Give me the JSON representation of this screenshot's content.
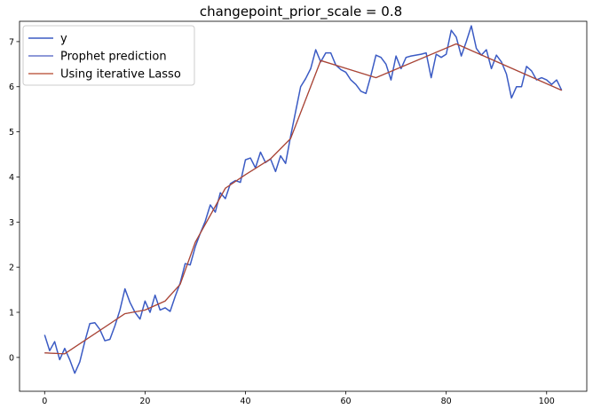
{
  "chart_data": {
    "type": "line",
    "title": "changepoint_prior_scale = 0.8",
    "xlabel": "",
    "ylabel": "",
    "xlim": [
      -5,
      108
    ],
    "ylim": [
      -0.75,
      7.45
    ],
    "xticks": [
      0,
      20,
      40,
      60,
      80,
      100
    ],
    "yticks": [
      0,
      1,
      2,
      3,
      4,
      5,
      6,
      7
    ],
    "grid": false,
    "legend_position": "top-left",
    "series": [
      {
        "name": "y",
        "color": "#3b5bc4",
        "x": [
          0,
          1,
          2,
          3,
          4,
          5,
          6,
          7,
          8,
          9,
          10,
          11,
          12,
          13,
          14,
          15,
          16,
          17,
          18,
          19,
          20,
          21,
          22,
          23,
          24,
          25,
          26,
          27,
          28,
          29,
          30,
          31,
          32,
          33,
          34,
          35,
          36,
          37,
          38,
          39,
          40,
          41,
          42,
          43,
          44,
          45,
          46,
          47,
          48,
          49,
          50,
          51,
          52,
          53,
          54,
          55,
          56,
          57,
          58,
          59,
          60,
          61,
          62,
          63,
          64,
          65,
          66,
          67,
          68,
          69,
          70,
          71,
          72,
          73,
          74,
          75,
          76,
          77,
          78,
          79,
          80,
          81,
          82,
          83,
          84,
          85,
          86,
          87,
          88,
          89,
          90,
          91,
          92,
          93,
          94,
          95,
          96,
          97,
          98,
          99,
          100,
          101,
          102,
          103
        ],
        "values": [
          0.5,
          0.15,
          0.35,
          -0.05,
          0.2,
          -0.05,
          -0.35,
          -0.1,
          0.35,
          0.75,
          0.77,
          0.62,
          0.37,
          0.4,
          0.7,
          1.05,
          1.52,
          1.22,
          1.0,
          0.85,
          1.25,
          1.0,
          1.38,
          1.05,
          1.1,
          1.02,
          1.35,
          1.65,
          2.08,
          2.05,
          2.45,
          2.75,
          3.02,
          3.38,
          3.22,
          3.65,
          3.52,
          3.85,
          3.92,
          3.88,
          4.38,
          4.42,
          4.2,
          4.55,
          4.32,
          4.4,
          4.12,
          4.47,
          4.3,
          4.9,
          5.45,
          6.0,
          6.18,
          6.4,
          6.82,
          6.55,
          6.75,
          6.75,
          6.48,
          6.38,
          6.32,
          6.15,
          6.05,
          5.9,
          5.85,
          6.25,
          6.7,
          6.65,
          6.5,
          6.15,
          6.68,
          6.4,
          6.65,
          6.68,
          6.7,
          6.72,
          6.75,
          6.2,
          6.72,
          6.65,
          6.72,
          7.25,
          7.1,
          6.68,
          7.0,
          7.35,
          6.85,
          6.7,
          6.82,
          6.4,
          6.7,
          6.55,
          6.28,
          5.75,
          6.0,
          6.0,
          6.45,
          6.35,
          6.15,
          6.2,
          6.15,
          6.05,
          6.15,
          5.92
        ]
      },
      {
        "name": "Prophet prediction",
        "color": "#4a5cc0",
        "x": [
          0,
          4,
          16,
          20,
          24,
          27,
          30,
          33,
          36,
          40,
          45,
          49,
          55,
          66,
          82,
          103
        ],
        "values": [
          0.1,
          0.08,
          0.97,
          1.05,
          1.25,
          1.62,
          2.55,
          3.15,
          3.75,
          4.05,
          4.4,
          4.85,
          6.58,
          6.2,
          6.95,
          5.92
        ]
      },
      {
        "name": "Using iterative Lasso",
        "color": "#b5452a",
        "x": [
          0,
          4,
          16,
          20,
          24,
          27,
          30,
          33,
          36,
          40,
          45,
          49,
          55,
          66,
          82,
          103
        ],
        "values": [
          0.1,
          0.08,
          0.97,
          1.05,
          1.25,
          1.62,
          2.55,
          3.15,
          3.75,
          4.05,
          4.4,
          4.85,
          6.58,
          6.2,
          6.95,
          5.92
        ]
      }
    ]
  }
}
